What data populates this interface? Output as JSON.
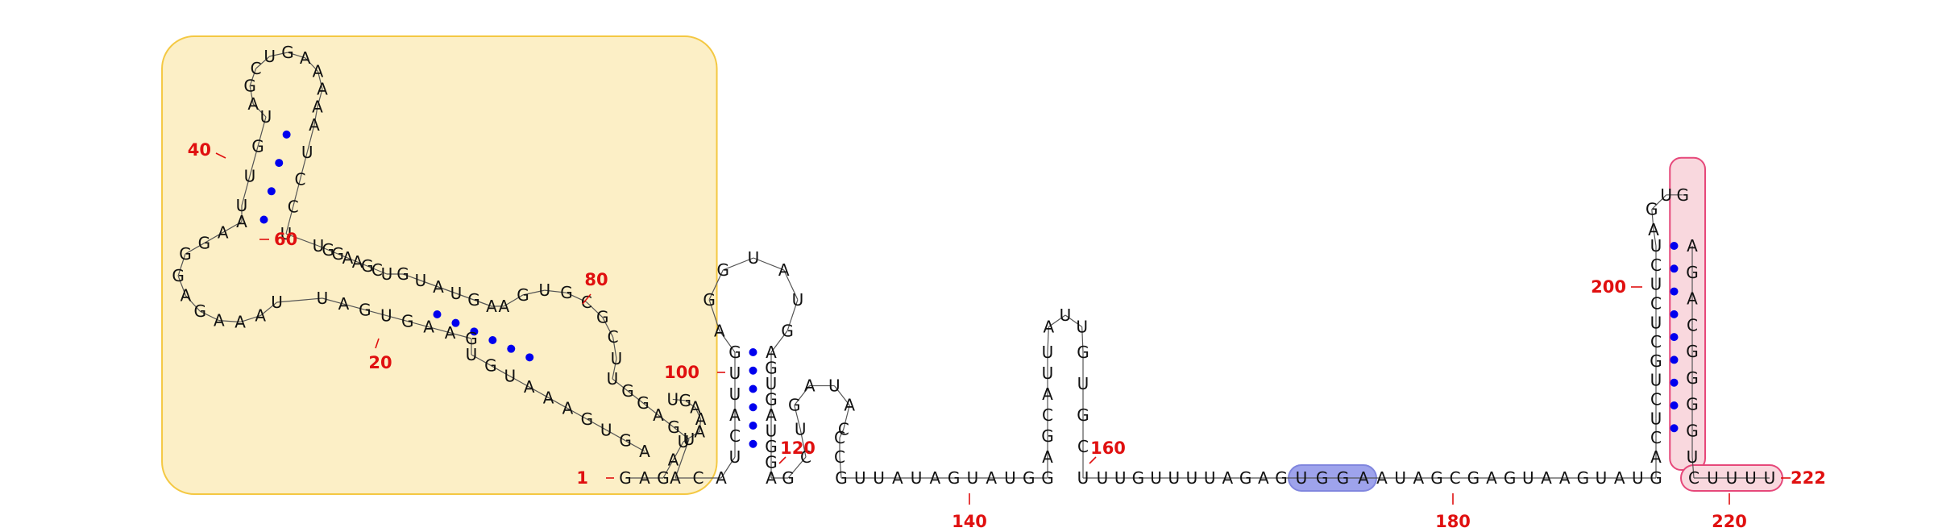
{
  "colors": {
    "background": "#ffffff",
    "nucleotide": "#111111",
    "pair_dot": "#0000ee",
    "backbone": "#555555",
    "number": "#e01010",
    "tick": "#e01010",
    "region_yellow_fill": "#fcefc6",
    "region_yellow_stroke": "#f4c842",
    "region_red_fill": "#f9d8de",
    "region_red_stroke": "#e6487a",
    "region_blue_fill": "#9ea3ec",
    "region_blue_stroke": "#8086de"
  },
  "position_numbers": [
    "1",
    "20",
    "40",
    "60",
    "80",
    "100",
    "120",
    "140",
    "160",
    "180",
    "200",
    "220",
    "222"
  ],
  "segments": {
    "bottom_5prime": [
      "G",
      "A"
    ],
    "yellow_inner_a": [
      "G",
      "A",
      "U",
      "A",
      "A",
      "A",
      "G",
      "U"
    ],
    "yellow_diag": [
      "A",
      "G",
      "U",
      "G",
      "A",
      "A",
      "A",
      "U",
      "G",
      "U"
    ],
    "yellow_lower_left": [
      "G",
      "A",
      "A",
      "G",
      "U",
      "G",
      "A",
      "U",
      "U",
      "A",
      "A",
      "A",
      "G",
      "A",
      "G"
    ],
    "yellow_stem40": [
      "G",
      "G",
      "A",
      "A",
      "U",
      "U",
      "G",
      "U",
      "A",
      "G",
      "C",
      "U",
      "G",
      "A",
      "A",
      "A",
      "A",
      "A",
      "U",
      "C",
      "C",
      "U"
    ],
    "yellow_mid": [
      "U",
      "G",
      "G",
      "A",
      "A",
      "G",
      "C",
      "U",
      "G",
      "U",
      "A",
      "U",
      "G",
      "A",
      "A",
      "G",
      "U",
      "G",
      "C",
      "G",
      "C",
      "U",
      "U",
      "G",
      "G",
      "A",
      "G",
      "U"
    ],
    "hairpin100_left": [
      "A",
      "C",
      "A",
      "U",
      "C",
      "A",
      "U",
      "U",
      "G",
      "A",
      "G",
      "G",
      "U",
      "A",
      "U",
      "G"
    ],
    "hairpin100_right": [
      "A",
      "G",
      "U",
      "G",
      "A",
      "U",
      "G",
      "G",
      "A"
    ],
    "hairpin120": [
      "G",
      "C",
      "U",
      "G",
      "A",
      "U",
      "A",
      "C",
      "C",
      "C"
    ],
    "bottom_mid": [
      "G",
      "U",
      "U",
      "A",
      "U",
      "A",
      "G",
      "U",
      "A",
      "U",
      "G",
      "G"
    ],
    "hairpin150": [
      "A",
      "G",
      "C",
      "A",
      "U",
      "U",
      "A",
      "U",
      "U",
      "G",
      "U",
      "G",
      "C",
      "U"
    ],
    "bottom_long": [
      "U",
      "U",
      "G",
      "U",
      "U",
      "U",
      "U",
      "A",
      "G",
      "A",
      "G"
    ],
    "blue_region": [
      "U",
      "G",
      "G",
      "A"
    ],
    "bottom_tail": [
      "A",
      "U",
      "A",
      "G",
      "C",
      "G",
      "A",
      "G",
      "U",
      "A",
      "A",
      "G",
      "U",
      "A",
      "U",
      "G"
    ],
    "hairpin200_left": [
      "A",
      "C",
      "U",
      "C",
      "U",
      "G",
      "C",
      "U",
      "C",
      "U",
      "C",
      "U",
      "A",
      "G",
      "U"
    ],
    "hairpin200_right": [
      "G",
      "A",
      "G",
      "A",
      "C",
      "G",
      "G",
      "G",
      "G",
      "U"
    ],
    "tail_3prime": [
      "C",
      "U",
      "U",
      "U",
      "U"
    ]
  }
}
